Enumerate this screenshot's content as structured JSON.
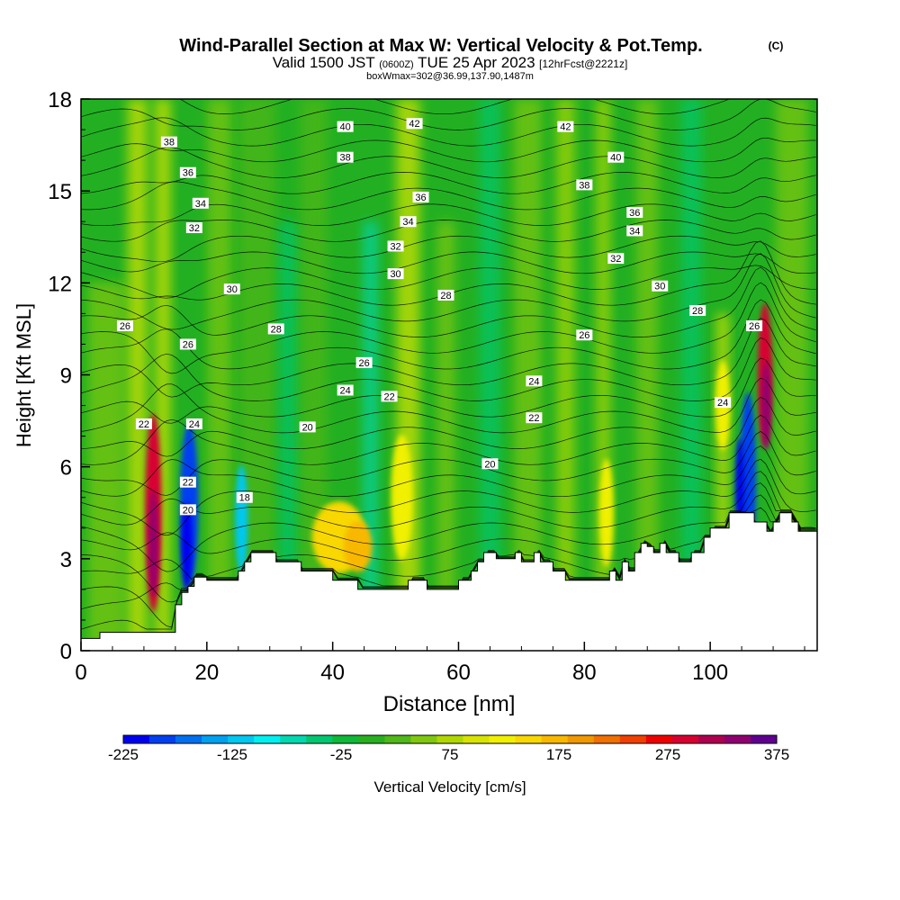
{
  "header": {
    "title": "Wind-Parallel Section at Max W: Vertical Velocity & Pot.Temp.",
    "copyright": "(C)",
    "valid_prefix": "Valid 1500 JST",
    "valid_utc": "(0600Z)",
    "valid_date": "TUE 25 Apr 2023",
    "forecast": "[12hrFcst@2221z]",
    "box_info": "boxWmax=302@36.99,137.90,1487m"
  },
  "chart_data": {
    "type": "heatmap",
    "title": "Wind-Parallel Section at Max W: Vertical Velocity & Pot.Temp.",
    "xlabel": "Distance [nm]",
    "ylabel": "Height [Kft MSL]",
    "xlim": [
      0,
      117
    ],
    "ylim": [
      0,
      18
    ],
    "x_ticks": [
      "0",
      "20",
      "40",
      "60",
      "80",
      "100"
    ],
    "x_tick_values": [
      0,
      20,
      40,
      60,
      80,
      100
    ],
    "y_ticks": [
      "0",
      "3",
      "6",
      "9",
      "12",
      "15",
      "18"
    ],
    "y_tick_values": [
      0,
      3,
      6,
      9,
      12,
      15,
      18
    ],
    "colorbar": {
      "label": "Vertical Velocity [cm/s]",
      "min": -225,
      "max": 375,
      "step": 25,
      "tick_labels": [
        "-225",
        "-125",
        "-25",
        "75",
        "175",
        "275",
        "375"
      ],
      "tick_values": [
        -225,
        -125,
        -25,
        75,
        175,
        275,
        375
      ],
      "colors": [
        "#0000f0",
        "#0040f0",
        "#0070f0",
        "#00a0f0",
        "#00c8f0",
        "#00f0f0",
        "#00d8b0",
        "#00c870",
        "#10b838",
        "#28b020",
        "#50b818",
        "#80c810",
        "#b0d800",
        "#d8e400",
        "#f0f000",
        "#f8d800",
        "#f8b800",
        "#f09800",
        "#f07000",
        "#f04000",
        "#f00000",
        "#d80030",
        "#b00050",
        "#900070",
        "#600090"
      ]
    },
    "terrain": {
      "x": [
        0,
        3,
        10,
        13,
        15,
        16,
        17,
        18,
        20,
        24,
        25,
        26,
        27,
        30,
        31,
        33,
        35,
        36,
        38,
        40,
        44,
        47,
        50,
        52,
        55,
        60,
        62,
        63,
        64,
        66,
        69,
        70,
        72,
        73,
        75,
        77,
        79,
        82,
        84,
        85,
        86,
        87,
        88,
        89,
        90,
        91,
        92,
        93,
        95,
        96,
        97,
        99,
        100,
        103,
        105,
        106,
        107,
        108,
        109,
        110,
        111,
        112,
        113,
        114,
        116,
        117
      ],
      "y": [
        0.4,
        0.6,
        0.6,
        0.6,
        1.5,
        1.9,
        2.1,
        2.4,
        2.3,
        2.3,
        2.6,
        2.9,
        3.2,
        3.2,
        2.9,
        2.9,
        2.6,
        2.6,
        2.6,
        2.3,
        2.0,
        2.0,
        2.0,
        2.3,
        2.0,
        2.3,
        2.6,
        2.9,
        3.2,
        3.0,
        3.2,
        2.9,
        3.2,
        2.9,
        2.6,
        2.3,
        2.3,
        2.3,
        2.6,
        2.3,
        2.9,
        2.6,
        3.2,
        3.5,
        3.4,
        3.2,
        3.5,
        3.2,
        2.9,
        2.9,
        3.2,
        3.7,
        4.0,
        4.5,
        4.5,
        4.5,
        4.2,
        4.2,
        3.9,
        4.2,
        4.5,
        4.5,
        4.2,
        3.9,
        3.9,
        3.6
      ]
    },
    "vertical_velocity_features": [
      {
        "x": 11.5,
        "z": 4.5,
        "w": 300
      },
      {
        "x": 17.0,
        "z": 4.5,
        "w": -200
      },
      {
        "x": 26.0,
        "z": 4.0,
        "w": -100
      },
      {
        "x": 41.0,
        "z": 3.8,
        "w": 150
      },
      {
        "x": 51.0,
        "z": 5.0,
        "w": 130
      },
      {
        "x": 108.5,
        "z": 8.5,
        "w": 300
      },
      {
        "x": 106.0,
        "z": 5.0,
        "w": -200
      }
    ],
    "theta_contour_labels": [
      {
        "label": "18",
        "x": 26,
        "z": 5.0
      },
      {
        "label": "20",
        "x": 17,
        "z": 4.6
      },
      {
        "label": "20",
        "x": 36,
        "z": 7.3
      },
      {
        "label": "20",
        "x": 65,
        "z": 6.1
      },
      {
        "label": "22",
        "x": 10,
        "z": 7.4
      },
      {
        "label": "22",
        "x": 17,
        "z": 5.5
      },
      {
        "label": "22",
        "x": 49,
        "z": 8.3
      },
      {
        "label": "22",
        "x": 72,
        "z": 7.6
      },
      {
        "label": "24",
        "x": 18,
        "z": 7.4
      },
      {
        "label": "24",
        "x": 42,
        "z": 8.5
      },
      {
        "label": "24",
        "x": 72,
        "z": 8.8
      },
      {
        "label": "24",
        "x": 102,
        "z": 8.1
      },
      {
        "label": "26",
        "x": 7,
        "z": 10.6
      },
      {
        "label": "26",
        "x": 17,
        "z": 10.0
      },
      {
        "label": "26",
        "x": 45,
        "z": 9.4
      },
      {
        "label": "26",
        "x": 80,
        "z": 10.3
      },
      {
        "label": "26",
        "x": 107,
        "z": 10.6
      },
      {
        "label": "28",
        "x": 31,
        "z": 10.5
      },
      {
        "label": "28",
        "x": 58,
        "z": 11.6
      },
      {
        "label": "28",
        "x": 98,
        "z": 11.1
      },
      {
        "label": "30",
        "x": 24,
        "z": 11.8
      },
      {
        "label": "30",
        "x": 50,
        "z": 12.3
      },
      {
        "label": "30",
        "x": 92,
        "z": 11.9
      },
      {
        "label": "32",
        "x": 18,
        "z": 13.8
      },
      {
        "label": "32",
        "x": 50,
        "z": 13.2
      },
      {
        "label": "32",
        "x": 85,
        "z": 12.8
      },
      {
        "label": "34",
        "x": 19,
        "z": 14.6
      },
      {
        "label": "34",
        "x": 52,
        "z": 14.0
      },
      {
        "label": "34",
        "x": 88,
        "z": 13.7
      },
      {
        "label": "36",
        "x": 17,
        "z": 15.6
      },
      {
        "label": "36",
        "x": 54,
        "z": 14.8
      },
      {
        "label": "36",
        "x": 88,
        "z": 14.3
      },
      {
        "label": "38",
        "x": 14,
        "z": 16.6
      },
      {
        "label": "38",
        "x": 42,
        "z": 16.1
      },
      {
        "label": "38",
        "x": 80,
        "z": 15.2
      },
      {
        "label": "40",
        "x": 42,
        "z": 17.1
      },
      {
        "label": "40",
        "x": 85,
        "z": 16.1
      },
      {
        "label": "42",
        "x": 53,
        "z": 17.2
      },
      {
        "label": "42",
        "x": 77,
        "z": 17.1
      }
    ]
  }
}
